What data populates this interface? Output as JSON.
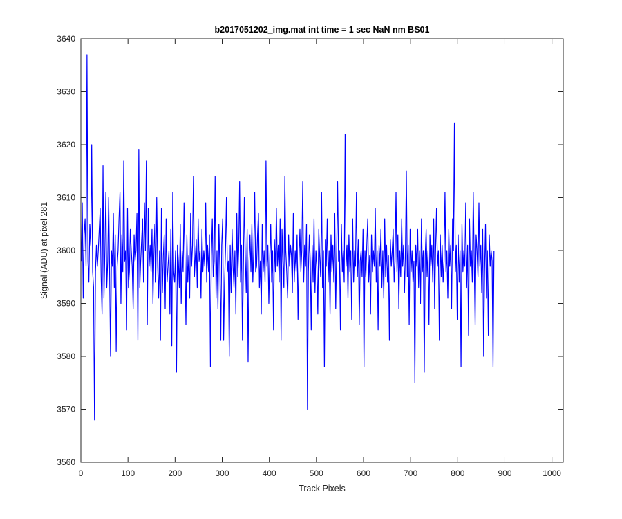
{
  "chart_data": {
    "type": "line",
    "title": "b2017051202_img.mat int time = 1 sec  NaN nm BS01",
    "xlabel": "Track Pixels",
    "ylabel": "Signal (ADU) at pixel 281",
    "xlim": [
      0,
      1024
    ],
    "ylim": [
      3560,
      3640
    ],
    "xticks": [
      0,
      100,
      200,
      300,
      400,
      500,
      600,
      700,
      800,
      900,
      1000
    ],
    "yticks": [
      3560,
      3570,
      3580,
      3590,
      3600,
      3610,
      3620,
      3630,
      3640
    ],
    "grid": false,
    "line_color": "#0000ff",
    "series": [
      {
        "x_start": 1,
        "x_step": 2,
        "values": [
          3598,
          3609,
          3591,
          3603,
          3606,
          3597,
          3637,
          3598,
          3594,
          3605,
          3601,
          3620,
          3596,
          3593,
          3568,
          3596,
          3601,
          3597,
          3600,
          3604,
          3608,
          3595,
          3588,
          3616,
          3591,
          3600,
          3611,
          3593,
          3598,
          3610,
          3596,
          3580,
          3600,
          3597,
          3607,
          3593,
          3603,
          3581,
          3597,
          3600,
          3606,
          3611,
          3590,
          3603,
          3596,
          3617,
          3598,
          3600,
          3585,
          3608,
          3593,
          3596,
          3604,
          3600,
          3597,
          3589,
          3603,
          3598,
          3600,
          3607,
          3583,
          3619,
          3593,
          3598,
          3602,
          3606,
          3594,
          3609,
          3600,
          3617,
          3586,
          3608,
          3597,
          3601,
          3596,
          3604,
          3590,
          3599,
          3605,
          3594,
          3610,
          3597,
          3591,
          3600,
          3583,
          3608,
          3592,
          3599,
          3603,
          3589,
          3606,
          3594,
          3597,
          3600,
          3588,
          3604,
          3582,
          3611,
          3596,
          3594,
          3600,
          3577,
          3601,
          3598,
          3593,
          3605,
          3590,
          3600,
          3596,
          3609,
          3598,
          3586,
          3603,
          3594,
          3599,
          3591,
          3607,
          3597,
          3601,
          3614,
          3595,
          3599,
          3602,
          3593,
          3606,
          3598,
          3600,
          3591,
          3604,
          3596,
          3600,
          3597,
          3609,
          3594,
          3601,
          3596,
          3603,
          3578,
          3599,
          3606,
          3595,
          3598,
          3614,
          3591,
          3600,
          3589,
          3605,
          3597,
          3583,
          3601,
          3606,
          3583,
          3594,
          3600,
          3610,
          3596,
          3598,
          3580,
          3601,
          3592,
          3604,
          3597,
          3593,
          3600,
          3588,
          3607,
          3595,
          3600,
          3613,
          3594,
          3601,
          3583,
          3597,
          3610,
          3599,
          3592,
          3604,
          3579,
          3598,
          3603,
          3596,
          3605,
          3594,
          3600,
          3611,
          3596,
          3597,
          3603,
          3607,
          3593,
          3598,
          3588,
          3605,
          3596,
          3600,
          3594,
          3617,
          3597,
          3601,
          3590,
          3599,
          3605,
          3594,
          3600,
          3585,
          3602,
          3596,
          3608,
          3597,
          3601,
          3594,
          3606,
          3583,
          3604,
          3598,
          3593,
          3614,
          3600,
          3596,
          3591,
          3603,
          3597,
          3601,
          3599,
          3592,
          3607,
          3594,
          3600,
          3596,
          3603,
          3587,
          3598,
          3604,
          3596,
          3600,
          3613,
          3594,
          3601,
          3597,
          3605,
          3570,
          3596,
          3603,
          3598,
          3585,
          3601,
          3594,
          3606,
          3592,
          3600,
          3597,
          3588,
          3604,
          3599,
          3595,
          3611,
          3593,
          3600,
          3578,
          3602,
          3597,
          3606,
          3594,
          3600,
          3588,
          3603,
          3596,
          3601,
          3594,
          3607,
          3589,
          3600,
          3613,
          3598,
          3600,
          3585,
          3605,
          3596,
          3600,
          3594,
          3622,
          3597,
          3601,
          3591,
          3603,
          3596,
          3600,
          3587,
          3606,
          3594,
          3600,
          3597,
          3611,
          3595,
          3602,
          3586,
          3598,
          3600,
          3595,
          3604,
          3578,
          3600,
          3595,
          3601,
          3606,
          3594,
          3599,
          3588,
          3603,
          3596,
          3600,
          3597,
          3608,
          3594,
          3600,
          3585,
          3601,
          3597,
          3604,
          3593,
          3600,
          3591,
          3606,
          3595,
          3601,
          3594,
          3599,
          3583,
          3602,
          3597,
          3600,
          3604,
          3594,
          3598,
          3611,
          3596,
          3603,
          3589,
          3600,
          3595,
          3606,
          3597,
          3601,
          3592,
          3600,
          3615,
          3595,
          3601,
          3586,
          3604,
          3596,
          3600,
          3594,
          3598,
          3575,
          3601,
          3597,
          3604,
          3593,
          3600,
          3590,
          3606,
          3596,
          3600,
          3577,
          3599,
          3604,
          3595,
          3600,
          3586,
          3603,
          3597,
          3601,
          3594,
          3606,
          3589,
          3600,
          3608,
          3597,
          3600,
          3583,
          3603,
          3595,
          3601,
          3594,
          3598,
          3611,
          3596,
          3600,
          3591,
          3604,
          3597,
          3601,
          3589,
          3606,
          3600,
          3624,
          3596,
          3601,
          3587,
          3603,
          3594,
          3600,
          3578,
          3605,
          3596,
          3600,
          3597,
          3609,
          3593,
          3601,
          3584,
          3606,
          3597,
          3600,
          3594,
          3611,
          3598,
          3586,
          3603,
          3600,
          3595,
          3609,
          3597,
          3601,
          3592,
          3604,
          3580,
          3596,
          3605,
          3591,
          3600,
          3584,
          3603,
          3597,
          3600,
          3598,
          3578,
          3600
        ]
      }
    ]
  }
}
